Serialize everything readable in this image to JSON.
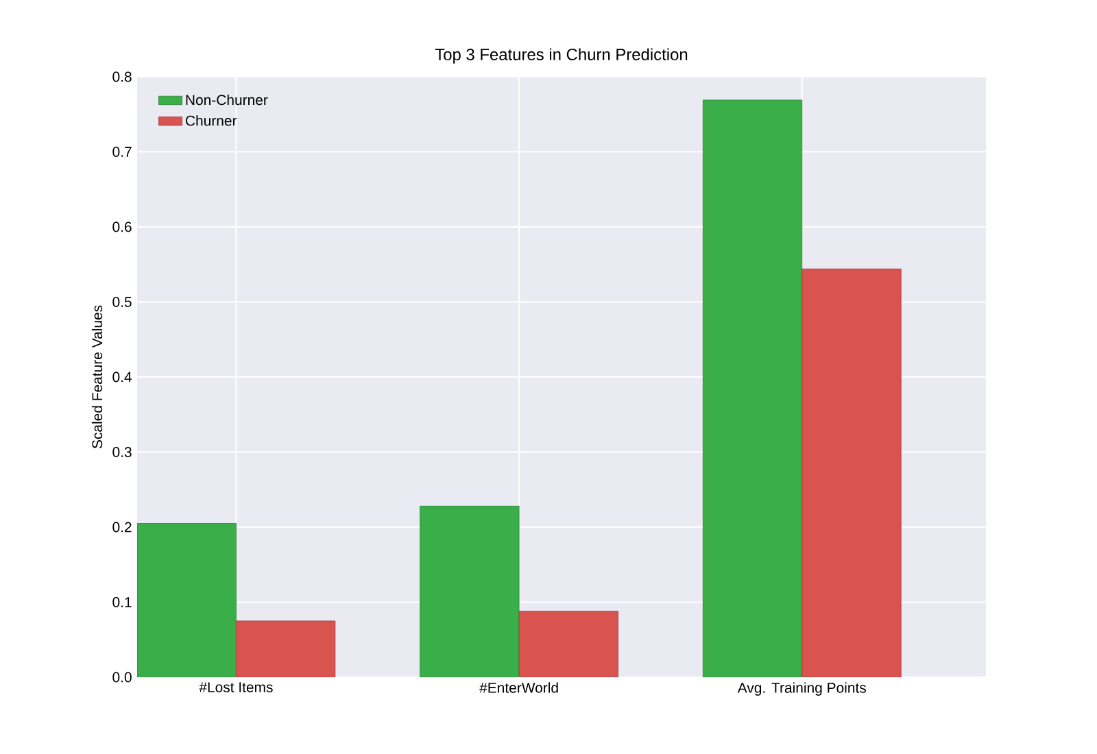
{
  "chart_data": {
    "type": "bar",
    "title": "Top 3 Features in Churn Prediction",
    "ylabel": "Scaled Feature Values",
    "categories": [
      "#Lost Items",
      "#EnterWorld",
      "Avg. Training Points"
    ],
    "series": [
      {
        "name": "Non-Churner",
        "color": "#3aaf49",
        "values": [
          0.205,
          0.228,
          0.769
        ]
      },
      {
        "name": "Churner",
        "color": "#d9534f",
        "values": [
          0.075,
          0.088,
          0.544
        ]
      }
    ],
    "ylim": [
      0,
      0.8
    ],
    "yticks": [
      {
        "value": 0,
        "label": "0.0"
      },
      {
        "value": 0.1,
        "label": "0.1"
      },
      {
        "value": 0.2,
        "label": "0.2"
      },
      {
        "value": 0.3,
        "label": "0.3"
      },
      {
        "value": 0.4,
        "label": "0.4"
      },
      {
        "value": 0.5,
        "label": "0.5"
      },
      {
        "value": 0.6,
        "label": "0.6"
      },
      {
        "value": 0.7,
        "label": "0.7"
      },
      {
        "value": 0.8,
        "label": "0.8"
      }
    ],
    "grid": true,
    "legend": "top left"
  }
}
